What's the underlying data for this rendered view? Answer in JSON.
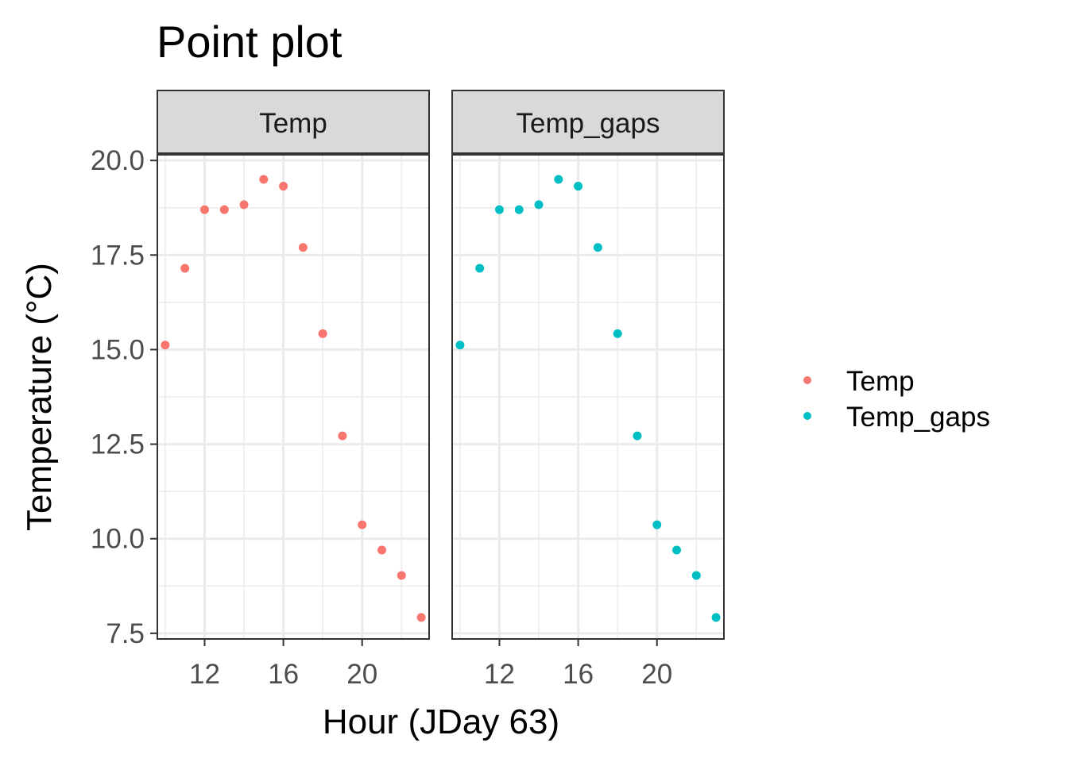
{
  "chart_data": {
    "type": "scatter",
    "title": "Point plot",
    "xlabel": "Hour (JDay 63)",
    "ylabel": "Temperature (°C)",
    "xlim": [
      9.6,
      23.4
    ],
    "ylim": [
      7.35,
      20.15
    ],
    "x_ticks": [
      12,
      16,
      20
    ],
    "y_ticks": [
      7.5,
      10.0,
      12.5,
      15.0,
      17.5,
      20.0
    ],
    "grid": true,
    "legend": "right",
    "facets": [
      "Temp",
      "Temp_gaps"
    ],
    "series": [
      {
        "name": "Temp",
        "color": "#F8766D",
        "x": [
          10,
          11,
          12,
          13,
          14,
          15,
          16,
          17,
          18,
          19,
          20,
          21,
          22,
          23
        ],
        "y": [
          15.12,
          17.15,
          18.7,
          18.7,
          18.83,
          19.5,
          19.32,
          17.7,
          15.42,
          12.72,
          10.37,
          9.7,
          9.03,
          7.92
        ]
      },
      {
        "name": "Temp_gaps",
        "color": "#00BFC4",
        "x": [
          10,
          11,
          12,
          13,
          14,
          15,
          16,
          17,
          18,
          19,
          20,
          21,
          22,
          23
        ],
        "y": [
          15.12,
          17.15,
          18.7,
          18.7,
          18.83,
          19.5,
          19.32,
          17.7,
          15.42,
          12.72,
          10.37,
          9.7,
          9.03,
          7.92
        ]
      }
    ]
  }
}
